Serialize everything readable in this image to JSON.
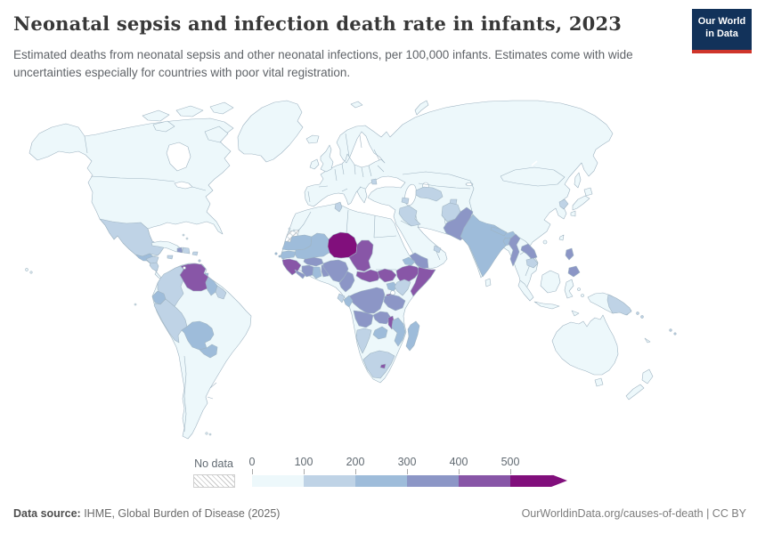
{
  "header": {
    "title": "Neonatal sepsis and infection death rate in infants, 2023",
    "subtitle": "Estimated deaths from neonatal sepsis and other neonatal infections, per 100,000 infants. Estimates come with wide uncertainties especially for countries with poor vital registration.",
    "logo": {
      "line1": "Our World",
      "line2": "in Data"
    }
  },
  "legend": {
    "no_data_label": "No data",
    "tick_labels": [
      "0",
      "100",
      "200",
      "300",
      "400",
      "500"
    ]
  },
  "footer": {
    "source_label": "Data source:",
    "source_text": " IHME, Global Burden of Disease (2025)",
    "credit": "OurWorldinData.org/causes-of-death | CC BY"
  },
  "colors": {
    "accent_navy": "#12325a",
    "accent_red": "#cf352b",
    "border_stroke": "#9fb4c2",
    "sea": "#ffffff"
  },
  "chart_data": {
    "type": "choropleth",
    "title": "Neonatal sepsis and infection death rate in infants",
    "year": "2023",
    "unit": "estimated deaths per 100,000 infants",
    "legend_position": "bottom",
    "bin_edges": [
      0,
      100,
      200,
      300,
      400,
      500
    ],
    "bin_labels": [
      "0-100",
      "100-200",
      "200-300",
      "300-400",
      "400-500",
      "500+"
    ],
    "bin_colors": [
      "#edf8fb",
      "#bfd3e6",
      "#9ebcda",
      "#8c96c6",
      "#8856a7",
      "#810f7c"
    ],
    "no_data": "hatched",
    "region_bins": {
      "north-america": 0,
      "arctic-islands": 0,
      "baffin-island": 0,
      "ellesmere-island": 0,
      "greenland": 0,
      "iceland": 0,
      "svalbard": 0,
      "novaya-zemlya": 0,
      "hawaii": 0,
      "bahamas": 0,
      "cuba": 0,
      "jamaica": 1,
      "haiti": 3,
      "dominican-republic": 1,
      "puerto-rico": 1,
      "lesser-antilles": 1,
      "trinidad-and-tobago": 2,
      "mexico": 1,
      "guatemala": 2,
      "honduras": 1,
      "nicaragua": 1,
      "south-america": 0,
      "colombia": 1,
      "venezuela": 4,
      "guyana": 2,
      "suriname": 1,
      "ecuador": 2,
      "peru": 1,
      "bolivia": 2,
      "paraguay": 2,
      "falkland-islands": 0,
      "galapagos": 0,
      "eurasia": 0,
      "united-kingdom": 0,
      "ireland": 0,
      "moldova": 1,
      "tunisia": 1,
      "azerbaijan": 1,
      "iraq": 1,
      "uae": 1,
      "yemen": 3,
      "turkmenistan-uzbekistan": 1,
      "tajikistan": 1,
      "afghanistan": 1,
      "pakistan": 3,
      "india": 2,
      "nepal": 2,
      "bangladesh": 2,
      "sri-lanka": 0,
      "myanmar": 3,
      "laos": 3,
      "cambodia": 1,
      "north-korea": 1,
      "japan": 0,
      "sakhalin": 0,
      "taiwan": 0,
      "hainan": 0,
      "philippines": 3,
      "sumatra": 0,
      "java": 0,
      "borneo": 0,
      "sulawesi": 0,
      "moluccas": 0,
      "timor": 0,
      "new-guinea": 0,
      "papua-new-guinea": 1,
      "solomon-islands": 1,
      "fiji": 1,
      "new-caledonia": 0,
      "australia": 0,
      "tasmania": 0,
      "new-zealand": 0,
      "africa": 0,
      "western-sahara": "no-data",
      "mauritania": 2,
      "mali": 2,
      "senegal": 2,
      "guinea": 4,
      "liberia": 3,
      "cote-divoire": 3,
      "ghana": 2,
      "togo-benin": 3,
      "burkina-faso": 3,
      "niger": 5,
      "nigeria": 3,
      "cameroon": 3,
      "chad": 4,
      "central-african-republic": 4,
      "south-sudan": 4,
      "ethiopia": 4,
      "somalia": 4,
      "eritrea": 2,
      "uganda": 2,
      "kenya": 1,
      "rwanda-burundi": 4,
      "drc": 3,
      "congo": 2,
      "gabon": 1,
      "tanzania": 3,
      "angola": 3,
      "zambia": 3,
      "malawi": 4,
      "mozambique": 2,
      "zimbabwe": 2,
      "namibia": 1,
      "south-africa": 1,
      "lesotho": 4,
      "madagascar": 2,
      "cape-verde": 2,
      "canary-islands": 0
    }
  }
}
